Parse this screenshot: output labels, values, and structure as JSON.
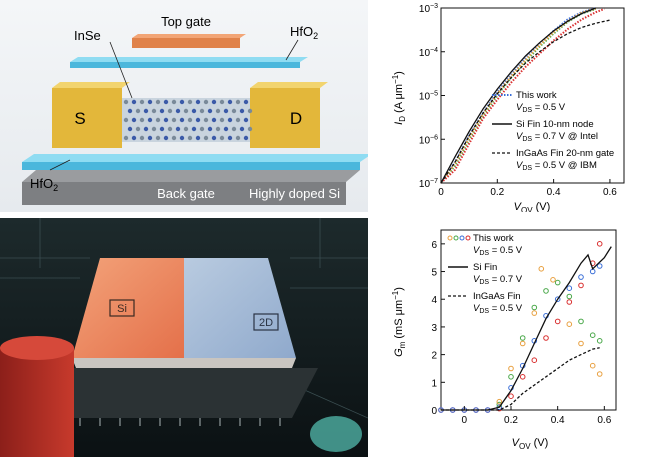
{
  "device_schematic": {
    "top_gate": "Top gate",
    "channel": "InSe",
    "top_dielectric": "HfO",
    "top_dielectric_sub": "2",
    "source": "S",
    "drain": "D",
    "bottom_dielectric": "HfO",
    "bottom_dielectric_sub": "2",
    "back_gate": "Back gate",
    "substrate": "Highly doped Si"
  },
  "chip_render": {
    "left_label": "Si",
    "right_label": "2D"
  },
  "colors": {
    "this_work_1": "#3b6fd8",
    "this_work_2": "#d93030",
    "this_work_3": "#4aa84a",
    "this_work_4": "#e8a040",
    "gate": "#e0824a",
    "dielectric": "#5bc8e8",
    "contact": "#e8c24a"
  },
  "chart_data": [
    {
      "type": "line",
      "ylabel_main": "I",
      "ylabel_sub": "D",
      "ylabel_unit": " (A μm",
      "ylabel_exp": "−1",
      "ylabel_close": ")",
      "xlabel_main": "V",
      "xlabel_sub": "OV",
      "xlabel_unit": " (V)",
      "yscale": "log",
      "ylim": [
        1e-07,
        0.001
      ],
      "xlim": [
        0,
        0.65
      ],
      "xticks": [
        "0",
        "0.2",
        "0.4",
        "0.6"
      ],
      "yticks": [
        {
          "base": "10",
          "exp": "−3"
        },
        {
          "base": "10",
          "exp": "−4"
        },
        {
          "base": "10",
          "exp": "−5"
        },
        {
          "base": "10",
          "exp": "−6"
        },
        {
          "base": "10",
          "exp": "−7"
        }
      ],
      "legend": [
        {
          "l1": "This work",
          "l2a": "V",
          "l2s": "DS",
          "l2b": " = 0.5 V"
        },
        {
          "l1": "Si Fin 10-nm node",
          "l2a": "V",
          "l2s": "DS",
          "l2b": " = 0.7 V @ Intel"
        },
        {
          "l1": "InGaAs Fin 20-nm gate",
          "l2a": "V",
          "l2s": "DS",
          "l2b": " = 0.5 V @ IBM"
        }
      ],
      "series": [
        {
          "style": "dotted",
          "color": "#3b6fd8",
          "x": [
            0.0,
            0.05,
            0.1,
            0.15,
            0.2,
            0.25,
            0.3,
            0.35,
            0.4,
            0.45,
            0.5,
            0.55
          ],
          "y": [
            1e-07,
            3e-07,
            1.2e-06,
            4e-06,
            1.2e-05,
            3e-05,
            7e-05,
            0.00015,
            0.0003,
            0.00055,
            0.0008,
            0.001
          ]
        },
        {
          "style": "dotted",
          "color": "#4aa84a",
          "x": [
            0.0,
            0.05,
            0.1,
            0.15,
            0.2,
            0.25,
            0.3,
            0.35,
            0.4,
            0.45,
            0.5,
            0.55
          ],
          "y": [
            1e-07,
            2.5e-07,
            1e-06,
            3.5e-06,
            1e-05,
            2.6e-05,
            6e-05,
            0.00013,
            0.00026,
            0.00048,
            0.00075,
            0.00095
          ]
        },
        {
          "style": "dotted",
          "color": "#e8a040",
          "x": [
            0.0,
            0.05,
            0.1,
            0.15,
            0.2,
            0.25,
            0.3,
            0.35,
            0.4,
            0.45,
            0.5,
            0.55
          ],
          "y": [
            1e-07,
            2.8e-07,
            1.1e-06,
            3.8e-06,
            1.1e-05,
            2.8e-05,
            6.5e-05,
            0.00014,
            0.00028,
            0.0005,
            0.00078,
            0.00098
          ]
        },
        {
          "style": "dotted",
          "color": "#d93030",
          "x": [
            0.0,
            0.05,
            0.1,
            0.15,
            0.2,
            0.25,
            0.3,
            0.35,
            0.4,
            0.45,
            0.5,
            0.55,
            0.58
          ],
          "y": [
            1e-07,
            2e-07,
            8e-07,
            3e-06,
            8e-06,
            2e-05,
            4.5e-05,
            9e-05,
            0.00018,
            0.00033,
            0.00055,
            0.0008,
            0.00095
          ]
        },
        {
          "style": "solid",
          "color": "#111111",
          "x": [
            0.0,
            0.05,
            0.1,
            0.15,
            0.2,
            0.25,
            0.3,
            0.35,
            0.4,
            0.45,
            0.5,
            0.55
          ],
          "y": [
            1e-07,
            4e-07,
            1.5e-06,
            5e-06,
            1.4e-05,
            3.5e-05,
            8e-05,
            0.00016,
            0.0003,
            0.0005,
            0.00075,
            0.001
          ]
        },
        {
          "style": "dashed",
          "color": "#111111",
          "x": [
            0.0,
            0.05,
            0.1,
            0.15,
            0.2,
            0.25,
            0.3,
            0.35,
            0.4,
            0.45,
            0.5,
            0.55,
            0.6
          ],
          "y": [
            1e-07,
            3e-07,
            1.2e-06,
            4e-06,
            1.1e-05,
            2.6e-05,
            5.5e-05,
            0.0001,
            0.00017,
            0.00026,
            0.00036,
            0.00045,
            0.00053
          ]
        }
      ]
    },
    {
      "type": "scatter",
      "ylabel_main": "G",
      "ylabel_sub": "m",
      "ylabel_unit": " (mS μm",
      "ylabel_exp": "−1",
      "ylabel_close": ")",
      "xlabel_main": "V",
      "xlabel_sub": "OV",
      "xlabel_unit": " (V)",
      "ylim": [
        0,
        6.5
      ],
      "xlim": [
        -0.1,
        0.65
      ],
      "xticks": [
        "0",
        "0.2",
        "0.4",
        "0.6"
      ],
      "yticks": [
        "0",
        "1",
        "2",
        "3",
        "4",
        "5",
        "6"
      ],
      "legend": [
        {
          "l1": "This work",
          "l2a": "V",
          "l2s": "DS",
          "l2b": " = 0.5 V"
        },
        {
          "l1": "Si Fin",
          "l2a": "V",
          "l2s": "DS",
          "l2b": " = 0.7 V"
        },
        {
          "l1": "InGaAs Fin",
          "l2a": "V",
          "l2s": "DS",
          "l2b": " = 0.5 V"
        }
      ],
      "series": [
        {
          "style": "markers",
          "color": "#d93030",
          "x": [
            -0.1,
            -0.05,
            0.0,
            0.05,
            0.1,
            0.15,
            0.2,
            0.25,
            0.3,
            0.35,
            0.4,
            0.45,
            0.5,
            0.55,
            0.58
          ],
          "y": [
            0,
            0,
            0,
            0,
            0,
            0.05,
            0.5,
            1.2,
            1.8,
            2.6,
            3.2,
            3.9,
            4.5,
            5.3,
            6.0
          ]
        },
        {
          "style": "markers",
          "color": "#3b6fd8",
          "x": [
            -0.1,
            -0.05,
            0.0,
            0.05,
            0.1,
            0.15,
            0.2,
            0.25,
            0.3,
            0.35,
            0.4,
            0.45,
            0.5,
            0.55,
            0.58
          ],
          "y": [
            0,
            0,
            0,
            0,
            0,
            0.1,
            0.8,
            1.6,
            2.5,
            3.4,
            4.0,
            4.4,
            4.8,
            5.0,
            5.2
          ]
        },
        {
          "style": "markers",
          "color": "#4aa84a",
          "x": [
            0.15,
            0.2,
            0.25,
            0.3,
            0.35,
            0.4,
            0.45,
            0.5,
            0.55,
            0.58
          ],
          "y": [
            0.2,
            1.2,
            2.6,
            3.7,
            4.3,
            4.6,
            4.1,
            3.2,
            2.7,
            2.5
          ]
        },
        {
          "style": "markers",
          "color": "#e8a040",
          "x": [
            0.15,
            0.2,
            0.25,
            0.3,
            0.33,
            0.38,
            0.45,
            0.5,
            0.55,
            0.58
          ],
          "y": [
            0.3,
            1.5,
            2.4,
            3.5,
            5.1,
            4.7,
            3.1,
            2.4,
            1.6,
            1.3
          ]
        },
        {
          "style": "solid",
          "color": "#111111",
          "x": [
            -0.1,
            0.1,
            0.15,
            0.2,
            0.25,
            0.3,
            0.35,
            0.4,
            0.45,
            0.5,
            0.53,
            0.55,
            0.6,
            0.63
          ],
          "y": [
            0,
            0,
            0.1,
            0.7,
            1.5,
            2.4,
            3.3,
            4.0,
            4.6,
            5.3,
            5.6,
            5.1,
            5.5,
            5.9
          ]
        },
        {
          "style": "dashed",
          "color": "#111111",
          "x": [
            -0.1,
            0.15,
            0.2,
            0.25,
            0.3,
            0.35,
            0.4,
            0.45,
            0.5,
            0.55,
            0.58
          ],
          "y": [
            0,
            0,
            0.2,
            0.6,
            0.9,
            1.2,
            1.5,
            1.8,
            2.0,
            2.2,
            2.25
          ]
        }
      ]
    }
  ]
}
